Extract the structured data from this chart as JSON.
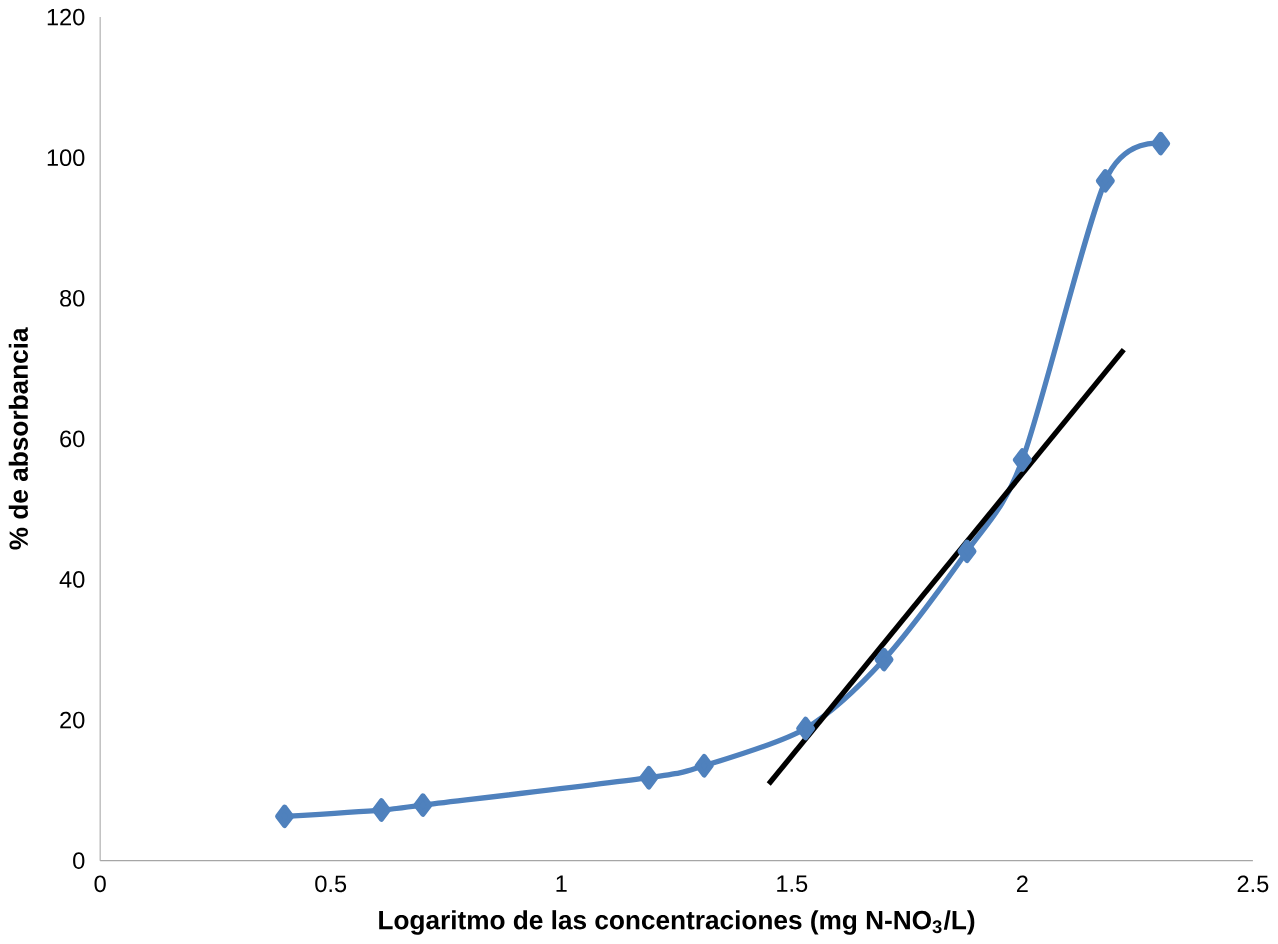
{
  "chart_data": {
    "type": "line",
    "xlabel": "Logaritmo de las concentraciones  (mg N-NO$_{3}$/L)",
    "ylabel": "% de absorbancia",
    "xlim": [
      0,
      2.5
    ],
    "xticks": [
      0,
      0.5,
      1,
      1.5,
      2,
      2.5
    ],
    "ylim": [
      0,
      120
    ],
    "yticks": [
      0,
      20,
      40,
      60,
      80,
      100,
      120
    ],
    "grid": false,
    "series": [
      {
        "color": "#4f81bd",
        "marker": "diamond",
        "x": [
          0.4,
          0.61,
          0.7,
          1.19,
          1.31,
          1.53,
          1.7,
          1.88,
          2.0,
          2.18,
          2.3
        ],
        "values": [
          6.3,
          7.2,
          7.9,
          11.8,
          13.5,
          18.8,
          28.6,
          44,
          57,
          96.7,
          102
        ]
      },
      {
        "color": "#000000",
        "marker": "none",
        "x": [
          1.45,
          2.22
        ],
        "values": [
          10.9,
          72.7
        ]
      }
    ]
  }
}
